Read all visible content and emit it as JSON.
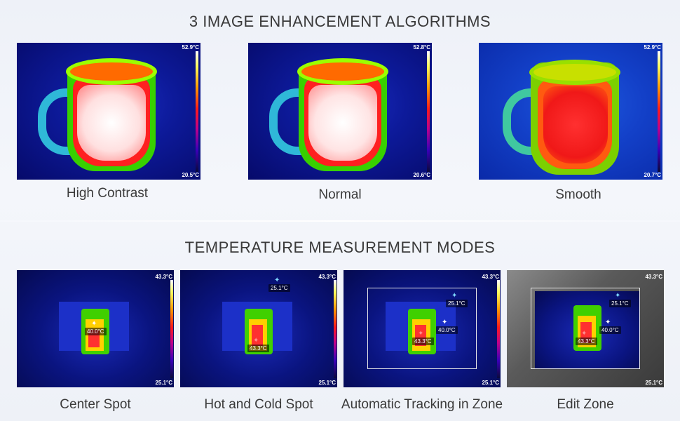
{
  "section1": {
    "title": "3 IMAGE ENHANCEMENT ALGORITHMS",
    "panels": [
      {
        "caption": "High Contrast",
        "max": "52.9°C",
        "min": "20.5°C"
      },
      {
        "caption": "Normal",
        "max": "52.8°C",
        "min": "20.6°C"
      },
      {
        "caption": "Smooth",
        "max": "52.9°C",
        "min": "20.7°C"
      }
    ]
  },
  "section2": {
    "title": "TEMPERATURE MEASUREMENT MODES",
    "panels": [
      {
        "caption": "Center Spot",
        "max": "43.3°C",
        "min": "25.1°C",
        "center": "40.0°C"
      },
      {
        "caption": "Hot and Cold Spot",
        "max": "43.3°C",
        "min": "25.1°C",
        "cold": "25.1°C",
        "hot": "43.3°C"
      },
      {
        "caption": "Automatic Tracking in Zone",
        "max": "43.3°C",
        "min": "25.1°C",
        "cold": "25.1°C",
        "center": "40.0°C",
        "hot": "43.3°C"
      },
      {
        "caption": "Edit Zone",
        "max": "43.3°C",
        "min": "25.1°C",
        "cold": "25.1°C",
        "center": "40.0°C",
        "hot": "43.3°C"
      }
    ]
  }
}
